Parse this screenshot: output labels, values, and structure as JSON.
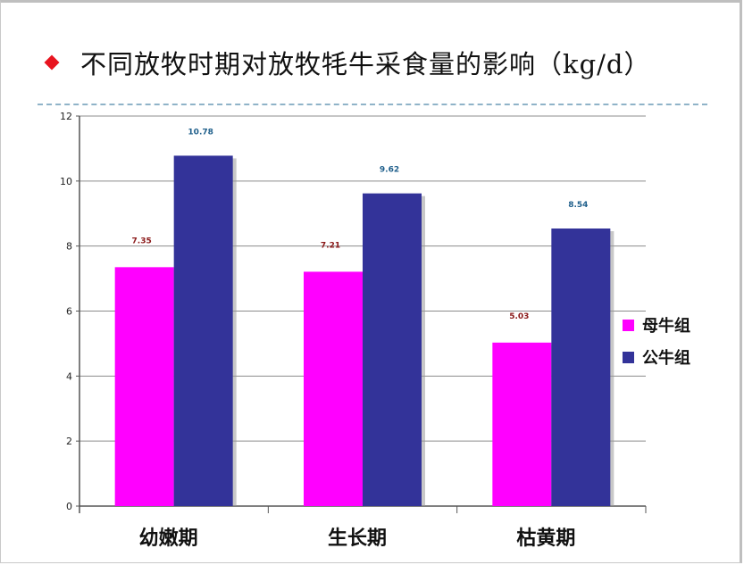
{
  "title": "不同放牧时期对放牧牦牛采食量的影响（kg/d）",
  "colors": {
    "bullet": "#e8141f",
    "series_female": "#ff00ff",
    "series_male": "#333399",
    "label_female": "#8b1a1a",
    "label_male": "#1f5f8b"
  },
  "chart_data": {
    "type": "bar",
    "title": "不同放牧时期对放牧牦牛采食量的影响（kg/d）",
    "categories": [
      "幼嫩期",
      "生长期",
      "枯黄期"
    ],
    "series": [
      {
        "name": "母牛组",
        "values": [
          7.35,
          7.21,
          5.03
        ],
        "labels": [
          "7.35",
          "7.21",
          "5.03"
        ]
      },
      {
        "name": "公牛组",
        "values": [
          10.78,
          9.62,
          8.54
        ],
        "labels": [
          "10.78",
          "9.62",
          "8.54"
        ]
      }
    ],
    "yticks": [
      "0",
      "2",
      "4",
      "6",
      "8",
      "10",
      "12"
    ],
    "ylim": [
      0,
      12
    ],
    "grid": true,
    "legend": "right"
  }
}
